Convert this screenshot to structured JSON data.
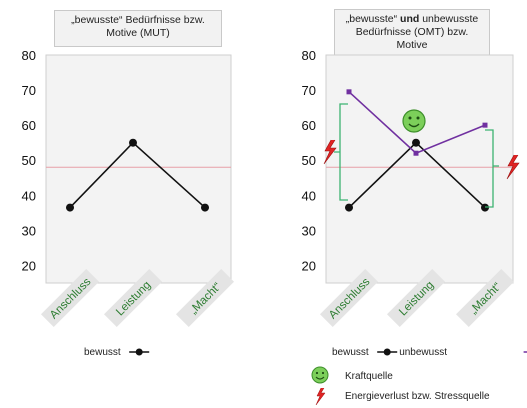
{
  "chart_data": [
    {
      "type": "line",
      "title": "„bewusste“ Bedürfnisse bzw. Motive (MUT)",
      "categories": [
        "Anschluss",
        "Leistung",
        "„Macht“"
      ],
      "ylim": [
        15,
        80
      ],
      "yticks": [
        20,
        30,
        40,
        50,
        60,
        70,
        80
      ],
      "reference_line": 48,
      "series": [
        {
          "name": "bewusst",
          "values": [
            36.5,
            55,
            36.5
          ],
          "color": "#111111",
          "marker": "circle"
        }
      ],
      "legend": [
        "bewusst"
      ]
    },
    {
      "type": "line",
      "title_pre": "„bewusste“ ",
      "title_bold": "und",
      "title_post": " unbewusste Bedürfnisse (OMT) bzw. Motive",
      "categories": [
        "Anschluss",
        "Leistung",
        "„Macht“"
      ],
      "ylim": [
        15,
        80
      ],
      "yticks": [
        20,
        30,
        40,
        50,
        60,
        70,
        80
      ],
      "reference_line": 48,
      "series": [
        {
          "name": "bewusst",
          "values": [
            36.5,
            55,
            36.5
          ],
          "color": "#111111",
          "marker": "circle"
        },
        {
          "name": "unbewusst",
          "values": [
            69.5,
            52,
            60
          ],
          "color": "#7030a0",
          "marker": "square"
        }
      ],
      "legend": [
        "bewusst",
        "unbewusst"
      ],
      "annotations": [
        {
          "label": "Kraftquelle",
          "icon": "smiley-icon"
        },
        {
          "label": "Energieverlust bzw. Stressquelle",
          "icon": "lightning-icon"
        }
      ]
    }
  ]
}
